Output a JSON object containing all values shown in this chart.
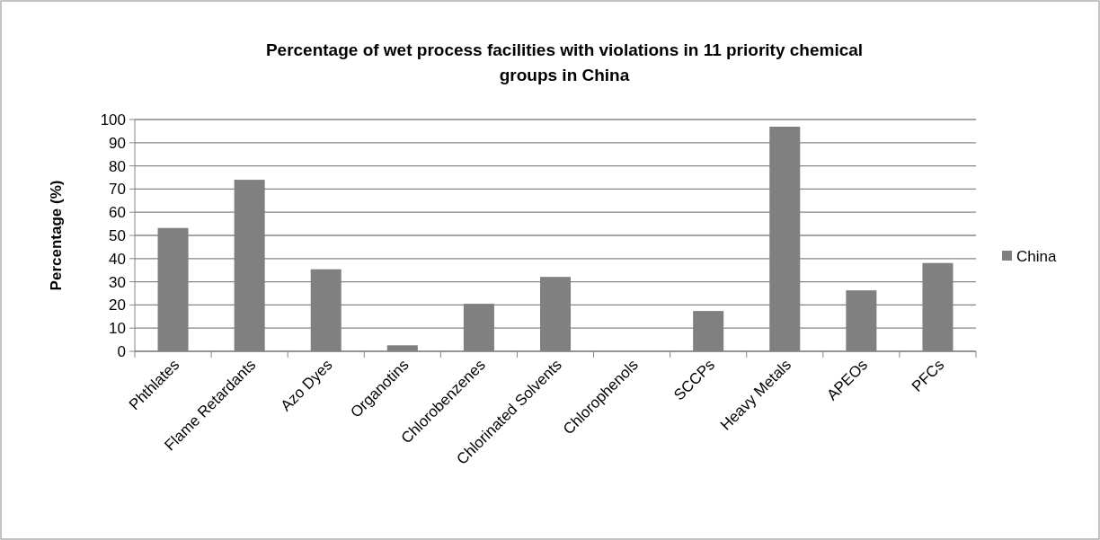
{
  "chart_data": {
    "type": "bar",
    "title": "Percentage of wet process facilities with violations in 11 priority chemical groups in China",
    "ylabel": "Percentage (%)",
    "categories": [
      "Phthlates",
      "Flame Retardants",
      "Azo Dyes",
      "Organotins",
      "Chlorobenzenes",
      "Chlorinated Solvents",
      "Chlorophenols",
      "SCCPs",
      "Heavy Metals",
      "APEOs",
      "PFCs"
    ],
    "series": [
      {
        "name": "China",
        "color": "#808080",
        "values": [
          53.2,
          74,
          35.4,
          2.6,
          20.5,
          32.1,
          0,
          17.4,
          96.9,
          26.3,
          38.1
        ]
      }
    ],
    "ylim": [
      0,
      100
    ],
    "yticks": [
      0,
      10,
      20,
      30,
      40,
      50,
      60,
      70,
      80,
      90,
      100
    ],
    "grid": "y",
    "legend": "right"
  }
}
